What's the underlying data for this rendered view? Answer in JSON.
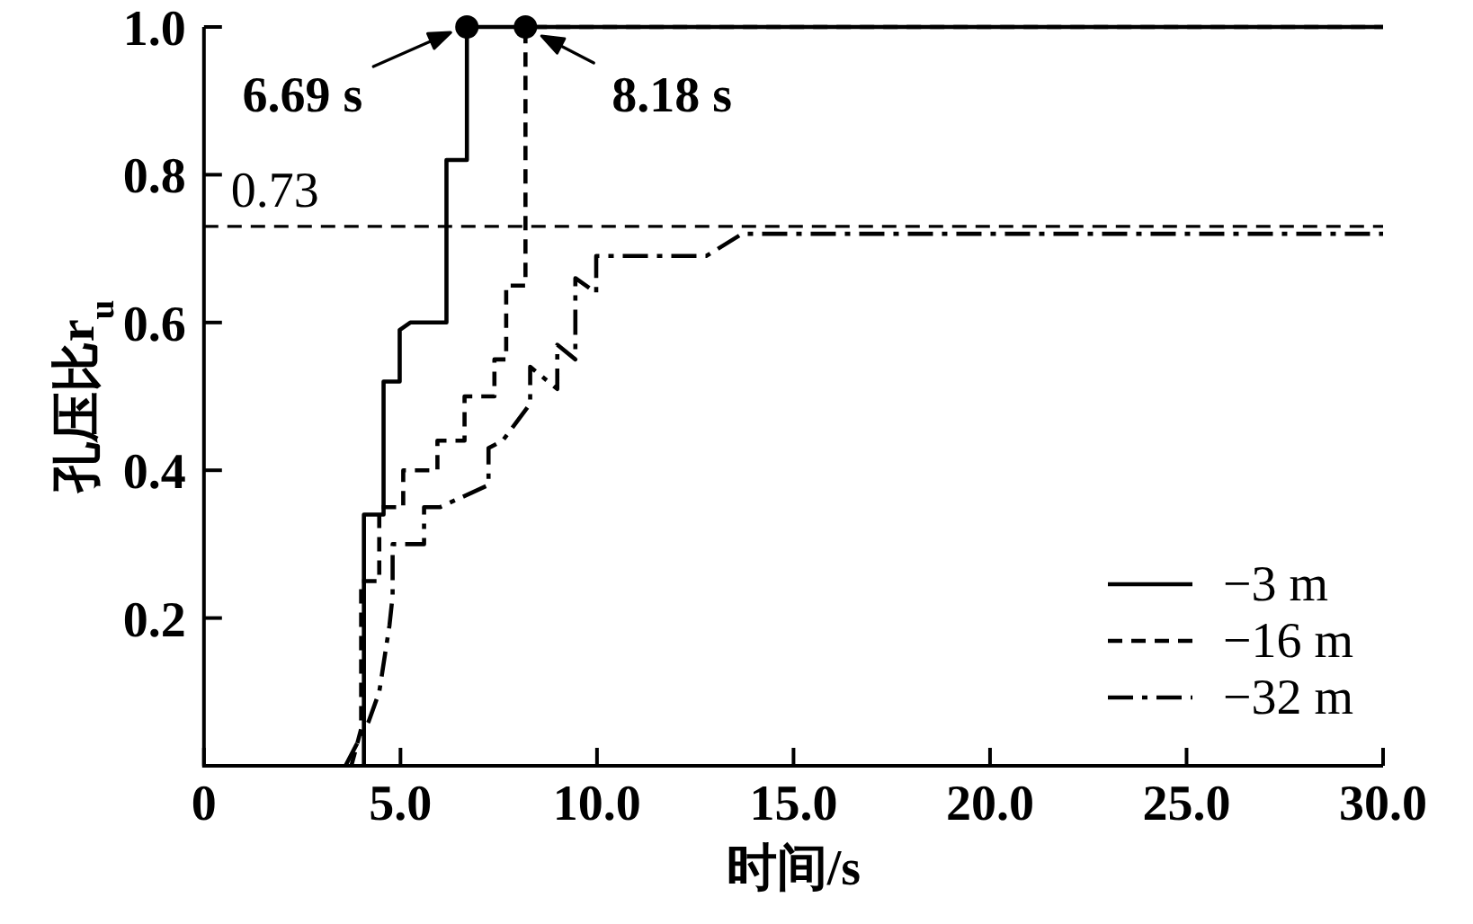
{
  "chart_data": {
    "type": "line",
    "xlabel": "时间/s",
    "ylabel": "孔压比r$_{u}$",
    "xlim": [
      0,
      30
    ],
    "ylim": [
      0,
      1
    ],
    "xticks": [
      0,
      {
        "value": 5,
        "label": "5.0"
      },
      {
        "value": 10,
        "label": "10.0"
      },
      {
        "value": 15,
        "label": "15.0"
      },
      {
        "value": 20,
        "label": "20.0"
      },
      {
        "value": 25,
        "label": "25.0"
      },
      {
        "value": 30,
        "label": "30.0"
      }
    ],
    "yticks": [
      0.2,
      0.4,
      0.6,
      0.8,
      {
        "value": 1,
        "label": "1.0"
      }
    ],
    "legend": "bottom right",
    "series": [
      {
        "name": "−3 m",
        "color": "#000000",
        "line_style": "solid",
        "x": [
          4.07,
          4.07,
          4.57,
          4.57,
          4.98,
          4.98,
          5.25,
          5.25,
          6.17,
          6.17,
          6.69,
          6.69,
          30
        ],
        "values": [
          0,
          0.34,
          0.34,
          0.52,
          0.52,
          0.59,
          0.6,
          0.6,
          0.6,
          0.82,
          0.82,
          1,
          1
        ]
      },
      {
        "name": "−16 m",
        "color": "#000000",
        "line_style": "dashed",
        "x": [
          3.75,
          4.0,
          4.0,
          4.46,
          4.46,
          5.07,
          5.07,
          5.94,
          5.94,
          6.63,
          6.63,
          7.39,
          7.39,
          7.69,
          7.69,
          8.18,
          8.18,
          30
        ],
        "values": [
          0,
          0.05,
          0.25,
          0.25,
          0.35,
          0.35,
          0.4,
          0.4,
          0.44,
          0.44,
          0.5,
          0.5,
          0.55,
          0.55,
          0.65,
          0.65,
          1,
          1
        ]
      },
      {
        "name": "−32 m",
        "color": "#000000",
        "line_style": "dashdot",
        "x": [
          3.6,
          4.19,
          4.46,
          4.72,
          4.8,
          4.8,
          5.6,
          5.6,
          6.0,
          7.24,
          7.24,
          7.6,
          8.3,
          8.3,
          8.99,
          8.99,
          9.45,
          9.45,
          9.98,
          9.98,
          11.56,
          12.78,
          13.69,
          30
        ],
        "values": [
          0,
          0.06,
          0.1,
          0.19,
          0.23,
          0.3,
          0.3,
          0.35,
          0.35,
          0.38,
          0.43,
          0.44,
          0.49,
          0.54,
          0.51,
          0.57,
          0.55,
          0.66,
          0.64,
          0.69,
          0.69,
          0.69,
          0.72,
          0.72
        ]
      }
    ],
    "ref_lines": [
      {
        "axis": "y",
        "value": 0.73,
        "label": "0.73",
        "line_style": "dashed",
        "color": "#000000"
      }
    ],
    "annotations": [
      {
        "text": "6.69 s",
        "x": 6.69,
        "y": 1
      },
      {
        "text": "8.18 s",
        "x": 8.18,
        "y": 1
      }
    ]
  }
}
